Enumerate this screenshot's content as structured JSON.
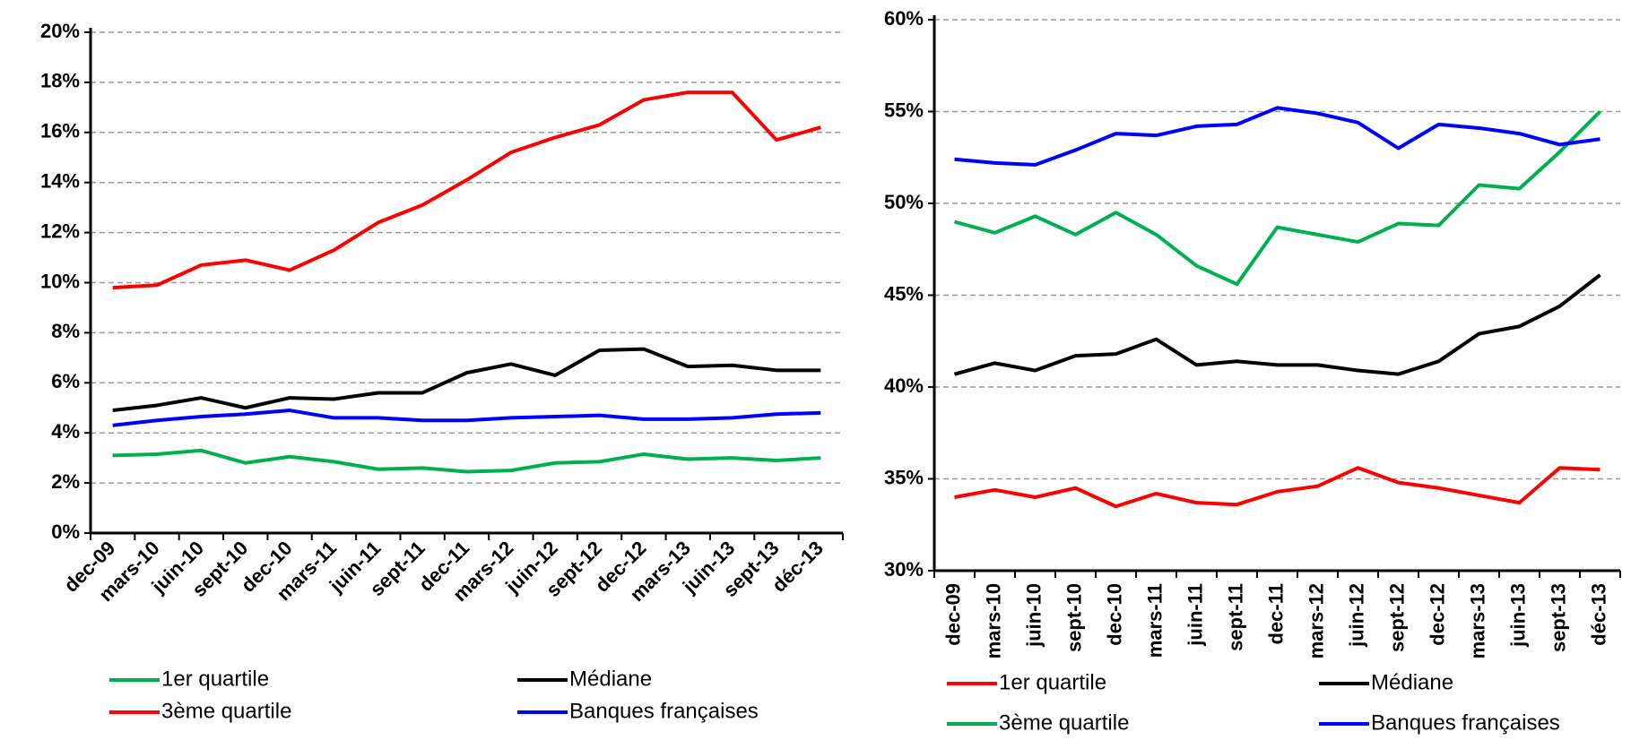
{
  "chart_data": [
    {
      "type": "line",
      "categories": [
        "dec-09",
        "mars-10",
        "juin-10",
        "sept-10",
        "dec-10",
        "mars-11",
        "juin-11",
        "sept-11",
        "dec-11",
        "mars-12",
        "juin-12",
        "sept-12",
        "dec-12",
        "mars-13",
        "juin-13",
        "sept-13",
        "déc-13"
      ],
      "series": [
        {
          "name": "1er quartile",
          "color": "#00b050",
          "values": [
            3.1,
            3.15,
            3.3,
            2.8,
            3.05,
            2.85,
            2.55,
            2.6,
            2.45,
            2.5,
            2.8,
            2.85,
            3.15,
            2.95,
            3.0,
            2.9,
            3.0
          ]
        },
        {
          "name": "Médiane",
          "color": "#000000",
          "values": [
            4.9,
            5.1,
            5.4,
            5.0,
            5.4,
            5.35,
            5.6,
            5.6,
            6.4,
            6.75,
            6.3,
            7.3,
            7.35,
            6.65,
            6.7,
            6.5,
            6.5
          ]
        },
        {
          "name": "3ème quartile",
          "color": "#ff0000",
          "values": [
            9.8,
            9.9,
            10.7,
            10.9,
            10.5,
            11.3,
            12.4,
            13.1,
            14.1,
            15.2,
            15.8,
            16.3,
            17.3,
            17.6,
            17.6,
            15.7,
            16.2
          ]
        },
        {
          "name": "Banques françaises",
          "color": "#0000ff",
          "values": [
            4.3,
            4.5,
            4.65,
            4.75,
            4.9,
            4.6,
            4.6,
            4.5,
            4.5,
            4.6,
            4.65,
            4.7,
            4.55,
            4.55,
            4.6,
            4.75,
            4.8
          ]
        }
      ],
      "ylim": [
        0,
        20
      ],
      "yticks": [
        {
          "value": 0,
          "label": "0%"
        },
        {
          "value": 2,
          "label": "2%"
        },
        {
          "value": 4,
          "label": "4%"
        },
        {
          "value": 6,
          "label": "6%"
        },
        {
          "value": 8,
          "label": "8%"
        },
        {
          "value": 10,
          "label": "10%"
        },
        {
          "value": 12,
          "label": "12%"
        },
        {
          "value": 14,
          "label": "14%"
        },
        {
          "value": 16,
          "label": "16%"
        },
        {
          "value": 18,
          "label": "18%"
        },
        {
          "value": 20,
          "label": "20%"
        }
      ],
      "grid": true,
      "legend": "bottom"
    },
    {
      "type": "line",
      "categories": [
        "dec-09",
        "mars-10",
        "juin-10",
        "sept-10",
        "dec-10",
        "mars-11",
        "juin-11",
        "sept-11",
        "dec-11",
        "mars-12",
        "juin-12",
        "sept-12",
        "dec-12",
        "mars-13",
        "juin-13",
        "sept-13",
        "déc-13"
      ],
      "series": [
        {
          "name": "1er quartile",
          "color": "#ff0000",
          "values": [
            34.0,
            34.4,
            34.0,
            34.5,
            33.5,
            34.2,
            33.7,
            33.6,
            34.3,
            34.6,
            35.6,
            34.8,
            34.5,
            34.1,
            33.7,
            35.6,
            35.5
          ]
        },
        {
          "name": "Médiane",
          "color": "#000000",
          "values": [
            40.7,
            41.3,
            40.9,
            41.7,
            41.8,
            42.6,
            41.2,
            41.4,
            41.2,
            41.2,
            40.9,
            40.7,
            41.4,
            42.9,
            43.3,
            44.4,
            46.1
          ]
        },
        {
          "name": "3ème quartile",
          "color": "#00b050",
          "values": [
            49.0,
            48.4,
            49.3,
            48.3,
            49.5,
            48.3,
            46.6,
            45.6,
            48.7,
            48.3,
            47.9,
            48.9,
            48.8,
            51.0,
            50.8,
            52.8,
            55.0
          ]
        },
        {
          "name": "Banques françaises",
          "color": "#0000ff",
          "values": [
            52.4,
            52.2,
            52.1,
            52.9,
            53.8,
            53.7,
            54.2,
            54.3,
            55.2,
            54.9,
            54.4,
            53.0,
            54.3,
            54.1,
            53.8,
            53.2,
            53.5
          ]
        }
      ],
      "ylim": [
        30,
        60
      ],
      "yticks": [
        {
          "value": 30,
          "label": "30%"
        },
        {
          "value": 35,
          "label": "35%"
        },
        {
          "value": 40,
          "label": "40%"
        },
        {
          "value": 45,
          "label": "45%"
        },
        {
          "value": 50,
          "label": "50%"
        },
        {
          "value": 55,
          "label": "55%"
        },
        {
          "value": 60,
          "label": "60%"
        }
      ],
      "grid": true,
      "legend": "bottom"
    }
  ]
}
